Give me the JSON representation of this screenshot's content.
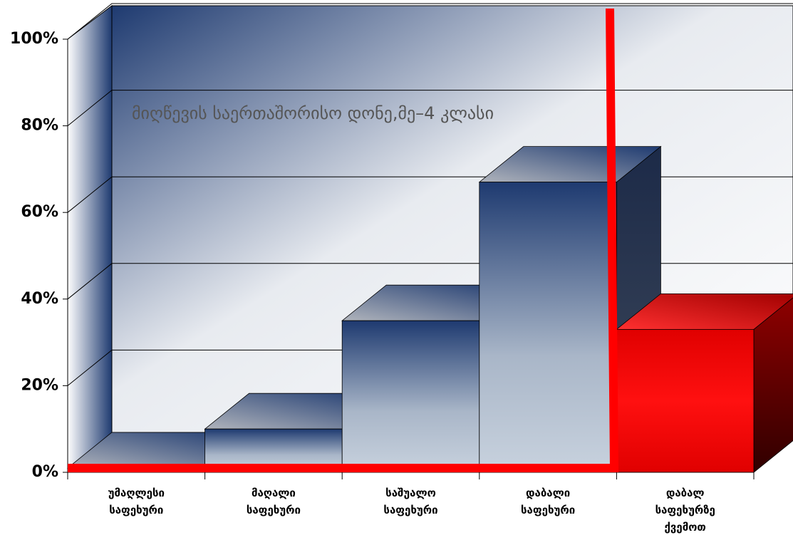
{
  "chart_data": {
    "type": "bar3d",
    "title": "მიღწევის საერთაშორისო დონე,მე–4 კლასი",
    "categories": [
      "უმაღლესი საფეხური",
      "მაღალი საფეხური",
      "საშუალო საფეხური",
      "დაბალი საფეხური",
      "დაბალ საფეხურზე ქვემოთ"
    ],
    "values": [
      1,
      10,
      35,
      67,
      33
    ],
    "colors": [
      "blue",
      "blue",
      "blue",
      "blue",
      "red"
    ],
    "ylim": [
      0,
      100
    ],
    "yticks": [
      {
        "value": 0,
        "label": "0%"
      },
      {
        "value": 20,
        "label": "20%"
      },
      {
        "value": 40,
        "label": "40%"
      },
      {
        "value": 60,
        "label": "60%"
      },
      {
        "value": 80,
        "label": "80%"
      },
      {
        "value": 100,
        "label": "100%"
      }
    ],
    "grid": true
  }
}
